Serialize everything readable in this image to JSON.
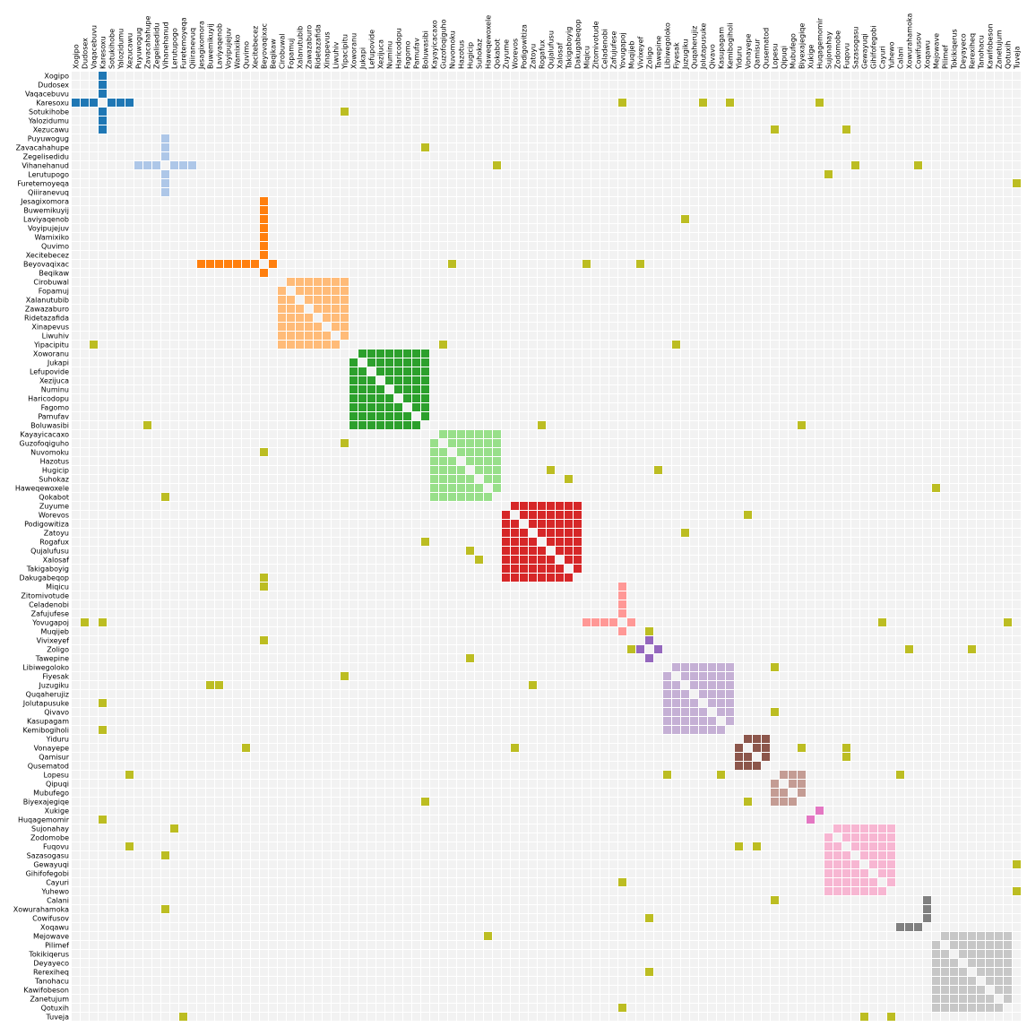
{
  "chart_data": {
    "type": "heatmap",
    "title": "",
    "nodes": [
      "Xogipo",
      "Dudosex",
      "Vaqacebuvu",
      "Karesoxu",
      "Sotukihobe",
      "Yalozidumu",
      "Xezucawu",
      "Puyuwogug",
      "Zavacahahupe",
      "Zegelisedidu",
      "Vihanehanud",
      "Lerutupogo",
      "Furetemoyeqa",
      "Qiiiranevuq",
      "Jesagixomora",
      "Buwemikuyij",
      "Laviyaqenob",
      "Voyipujejuv",
      "Wamixiko",
      "Quvimo",
      "Xecitebecez",
      "Beyovaqixac",
      "Beqikaw",
      "Cirobuwal",
      "Fopamuj",
      "Xalanutubib",
      "Zawazaburo",
      "Ridetazafida",
      "Xinapevus",
      "Liwuhiv",
      "Yipacipitu",
      "Xoworanu",
      "Jukapi",
      "Lefupovide",
      "Xezijuca",
      "Numinu",
      "Haricodopu",
      "Fagomo",
      "Pamufav",
      "Boluwasibi",
      "Kayayicacaxo",
      "Guzofoqiguho",
      "Nuvomoku",
      "Hazotus",
      "Hugicip",
      "Suhokaz",
      "Haweqewoxele",
      "Qokabot",
      "Zuyume",
      "Worevos",
      "Podigowitiza",
      "Zatoyu",
      "Rogafux",
      "Qujalufusu",
      "Xalosaf",
      "Takigaboyig",
      "Dakugabeqop",
      "Miqicu",
      "Zitomivotude",
      "Celadenobi",
      "Zafujufese",
      "Yovugapoj",
      "Muqijeb",
      "Vivixeyef",
      "Zoligo",
      "Tawepine",
      "Libiwegoloko",
      "Fiyesak",
      "Juzugiku",
      "Quqaherujiz",
      "Jolutapusuke",
      "Qivavo",
      "Kasupagam",
      "Kemibogiholi",
      "Yiduru",
      "Vonayepe",
      "Qamisur",
      "Qusematod",
      "Lopesu",
      "Qipuqi",
      "Mubufego",
      "Biyexajegiqe",
      "Xukige",
      "Huqagemomir",
      "Sujonahay",
      "Zodomobe",
      "Fuqovu",
      "Sazasogasu",
      "Gewayuqi",
      "Gihifofegobi",
      "Cayuri",
      "Yuhewo",
      "Calani",
      "Xowurahamoka",
      "Cowifusov",
      "Xoqawu",
      "Mejowave",
      "Pilimef",
      "Tokikiqerus",
      "Deyayeco",
      "Rerexiheq",
      "Tanohacu",
      "Kawifobeson",
      "Zanetujum",
      "Qotuxih",
      "Tuveja"
    ],
    "groups": [
      {
        "members": [
          0,
          1,
          2,
          3,
          4,
          5,
          6
        ],
        "hub": 3,
        "color": "#1f77b4",
        "pattern": "star"
      },
      {
        "members": [
          7,
          8,
          9,
          10,
          11,
          12,
          13
        ],
        "hub": 10,
        "color": "#aec7e8",
        "pattern": "star"
      },
      {
        "members": [
          14,
          15,
          16,
          17,
          18,
          19,
          20,
          21,
          22
        ],
        "hub": 21,
        "color": "#ff7f0e",
        "pattern": "star"
      },
      {
        "members": [
          23,
          24,
          25,
          26,
          27,
          28,
          29,
          30
        ],
        "color": "#ffbb78",
        "pattern": "clique"
      },
      {
        "members": [
          31,
          32,
          33,
          34,
          35,
          36,
          37,
          38,
          39
        ],
        "color": "#2ca02c",
        "pattern": "clique"
      },
      {
        "members": [
          40,
          41,
          42,
          43,
          44,
          45,
          46,
          47
        ],
        "color": "#98df8a",
        "pattern": "clique"
      },
      {
        "members": [
          48,
          49,
          50,
          51,
          52,
          53,
          54,
          55,
          56
        ],
        "color": "#d62728",
        "pattern": "clique"
      },
      {
        "members": [
          57,
          58,
          59,
          60,
          61,
          62
        ],
        "hub": 61,
        "color": "#ff9896",
        "pattern": "star"
      },
      {
        "members": [
          63,
          64,
          65
        ],
        "hub": 64,
        "color": "#9467bd",
        "pattern": "star"
      },
      {
        "members": [
          66,
          67,
          68,
          69,
          70,
          71,
          72,
          73
        ],
        "color": "#c5b0d5",
        "pattern": "clique"
      },
      {
        "members": [
          74,
          75,
          76,
          77
        ],
        "color": "#8c564b",
        "pattern": "clique"
      },
      {
        "members": [
          78,
          79,
          80,
          81
        ],
        "color": "#c49c94",
        "pattern": "clique"
      },
      {
        "members": [
          82,
          83
        ],
        "color": "#e377c2",
        "pattern": "clique"
      },
      {
        "members": [
          84,
          85,
          86,
          87,
          88,
          89,
          90,
          91
        ],
        "color": "#f7b6d2",
        "pattern": "clique"
      },
      {
        "members": [
          92,
          93,
          94,
          95
        ],
        "hub": 95,
        "color": "#7f7f7f",
        "pattern": "star"
      },
      {
        "members": [
          96,
          97,
          98,
          99,
          100,
          101,
          102,
          103,
          104
        ],
        "color": "#c7c7c7",
        "pattern": "clique"
      }
    ],
    "extra_links": [
      [
        3,
        61
      ],
      [
        3,
        70
      ],
      [
        3,
        73
      ],
      [
        3,
        83
      ],
      [
        4,
        30
      ],
      [
        6,
        78
      ],
      [
        6,
        86
      ],
      [
        8,
        39
      ],
      [
        10,
        47
      ],
      [
        10,
        87
      ],
      [
        10,
        94
      ],
      [
        11,
        84
      ],
      [
        12,
        105
      ],
      [
        16,
        68
      ],
      [
        21,
        42
      ],
      [
        21,
        57
      ],
      [
        21,
        63
      ],
      [
        30,
        2
      ],
      [
        30,
        41
      ],
      [
        30,
        67
      ],
      [
        39,
        8
      ],
      [
        39,
        52
      ],
      [
        39,
        81
      ],
      [
        41,
        30
      ],
      [
        42,
        21
      ],
      [
        44,
        53
      ],
      [
        44,
        65
      ],
      [
        45,
        55
      ],
      [
        46,
        96
      ],
      [
        47,
        10
      ],
      [
        49,
        75
      ],
      [
        51,
        68
      ],
      [
        52,
        39
      ],
      [
        53,
        44
      ],
      [
        54,
        45
      ],
      [
        56,
        21
      ],
      [
        57,
        21
      ],
      [
        61,
        1
      ],
      [
        61,
        3
      ],
      [
        61,
        90
      ],
      [
        61,
        104
      ],
      [
        62,
        64
      ],
      [
        63,
        21
      ],
      [
        64,
        62
      ],
      [
        64,
        93
      ],
      [
        64,
        100
      ],
      [
        65,
        44
      ],
      [
        66,
        78
      ],
      [
        67,
        30
      ],
      [
        68,
        15
      ],
      [
        68,
        16
      ],
      [
        68,
        51
      ],
      [
        70,
        3
      ],
      [
        71,
        78
      ],
      [
        73,
        3
      ],
      [
        75,
        19
      ],
      [
        75,
        49
      ],
      [
        75,
        81
      ],
      [
        75,
        86
      ],
      [
        76,
        86
      ],
      [
        78,
        6
      ],
      [
        78,
        66
      ],
      [
        78,
        72
      ],
      [
        78,
        92
      ],
      [
        81,
        39
      ],
      [
        81,
        75
      ],
      [
        83,
        3
      ],
      [
        84,
        11
      ],
      [
        86,
        6
      ],
      [
        86,
        74
      ],
      [
        86,
        76
      ],
      [
        87,
        10
      ],
      [
        88,
        105
      ],
      [
        90,
        61
      ],
      [
        91,
        105
      ],
      [
        92,
        78
      ],
      [
        93,
        10
      ],
      [
        94,
        64
      ],
      [
        96,
        46
      ],
      [
        100,
        64
      ],
      [
        104,
        61
      ],
      [
        105,
        12
      ],
      [
        105,
        88
      ],
      [
        105,
        91
      ]
    ],
    "colors": {
      "cell_empty": "#f2f2f2",
      "grid": "#ffffff",
      "inter_group": "#bcbd22"
    },
    "grid": true,
    "legend": "none"
  }
}
